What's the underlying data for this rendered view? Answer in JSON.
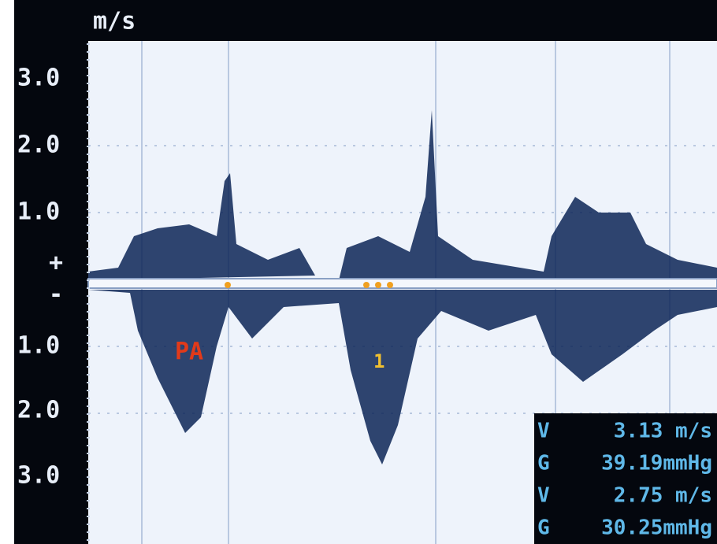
{
  "axis": {
    "unit": "m/s",
    "labels": [
      "3.0",
      "2.0",
      "1.0",
      "+",
      "-",
      "1.0",
      "2.0",
      "3.0"
    ]
  },
  "annotations": [
    "PA",
    "1"
  ],
  "measurements": [
    {
      "symbol": "V",
      "value": "3.13 m/s"
    },
    {
      "symbol": "G",
      "value": "39.19mmHg"
    },
    {
      "symbol": "V",
      "value": "2.75 m/s"
    },
    {
      "symbol": "G",
      "value": "30.25mmHg"
    }
  ]
}
